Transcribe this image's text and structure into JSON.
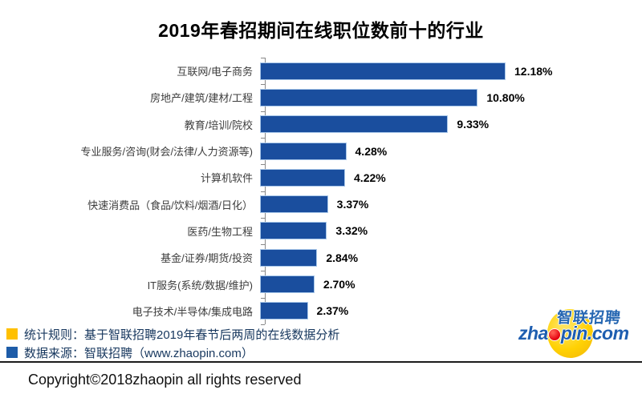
{
  "title": "2019年春招期间在线职位数前十的行业",
  "chart_data": {
    "type": "bar",
    "orientation": "horizontal",
    "title": "2019年春招期间在线职位数前十的行业",
    "xlabel": "",
    "ylabel": "",
    "xlim": [
      0,
      12.18
    ],
    "grid": false,
    "legend": "none",
    "value_axis_labels_visible": false,
    "bar_color": "#1A4E9E",
    "bar_border_color": "#A8C7E9",
    "categories": [
      "互联网/电子商务",
      "房地产/建筑/建材/工程",
      "教育/培训/院校",
      "专业服务/咨询(财会/法律/人力资源等)",
      "计算机软件",
      "快速消费品（食品/饮料/烟酒/日化）",
      "医药/生物工程",
      "基金/证券/期货/投资",
      "IT服务(系统/数据/维护)",
      "电子技术/半导体/集成电路"
    ],
    "values": [
      12.18,
      10.8,
      9.33,
      4.28,
      4.22,
      3.37,
      3.32,
      2.84,
      2.7,
      2.37
    ],
    "value_labels": [
      "12.18%",
      "10.80%",
      "9.33%",
      "4.28%",
      "4.22%",
      "3.37%",
      "3.32%",
      "2.84%",
      "2.70%",
      "2.37%"
    ]
  },
  "footnotes": [
    {
      "marker_color": "#FFC000",
      "text": "统计规则：基于智联招聘2019年春节后两周的在线数据分析"
    },
    {
      "marker_color": "#1E5CA8",
      "text": "数据来源：智联招聘（www.zhaopin.com）"
    }
  ],
  "logo": {
    "cn_text": "智联招聘",
    "en_text_before_dot": "zha",
    "en_text_after_dot": "pin.com",
    "ellipse_color": "#FFD103",
    "dot_color": "#E3000F",
    "text_color": "#1E5EB0"
  },
  "copyright": "Copyright©2018zhaopin all rights reserved"
}
